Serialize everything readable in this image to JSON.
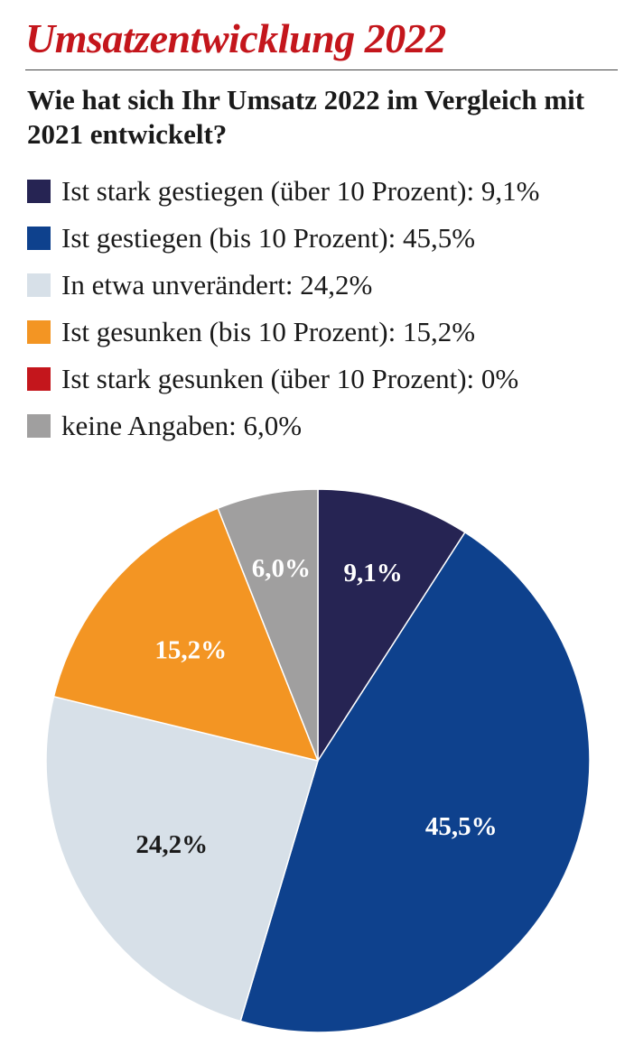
{
  "chart_data": {
    "type": "pie",
    "title": "Umsatzentwicklung 2022",
    "subtitle": "Wie hat sich Ihr Umsatz 2022 im Vergleich mit 2021 entwickelt?",
    "slices": [
      {
        "name": "Ist stark gestiegen (über 10 Prozent)",
        "legend_text": "Ist stark gestiegen (über 10 Prozent): 9,1%",
        "value": 9.1,
        "label": "9,1%",
        "color": "#262453",
        "label_color": "#ffffff"
      },
      {
        "name": "Ist gestiegen (bis 10 Prozent)",
        "legend_text": "Ist gestiegen (bis 10 Prozent): 45,5%",
        "value": 45.5,
        "label": "45,5%",
        "color": "#0e418d",
        "label_color": "#ffffff"
      },
      {
        "name": "In etwa unverändert",
        "legend_text": "In etwa unverändert: 24,2%",
        "value": 24.2,
        "label": "24,2%",
        "color": "#d7e0e8",
        "label_color": "#1a1a1a"
      },
      {
        "name": "Ist gesunken (bis 10 Prozent)",
        "legend_text": "Ist gesunken (bis 10 Prozent): 15,2%",
        "value": 15.2,
        "label": "15,2%",
        "color": "#f39523",
        "label_color": "#ffffff"
      },
      {
        "name": "Ist stark gesunken (über 10 Prozent)",
        "legend_text": "Ist stark gesunken (über 10 Prozent): 0%",
        "value": 0,
        "label": "",
        "color": "#c4161c",
        "label_color": "#ffffff"
      },
      {
        "name": "keine Angaben",
        "legend_text": "keine Angaben: 6,0%",
        "value": 6.0,
        "label": "6,0%",
        "color": "#a09f9f",
        "label_color": "#ffffff"
      }
    ],
    "legend_position": "top-left",
    "start_angle": "12 o'clock, clockwise"
  }
}
